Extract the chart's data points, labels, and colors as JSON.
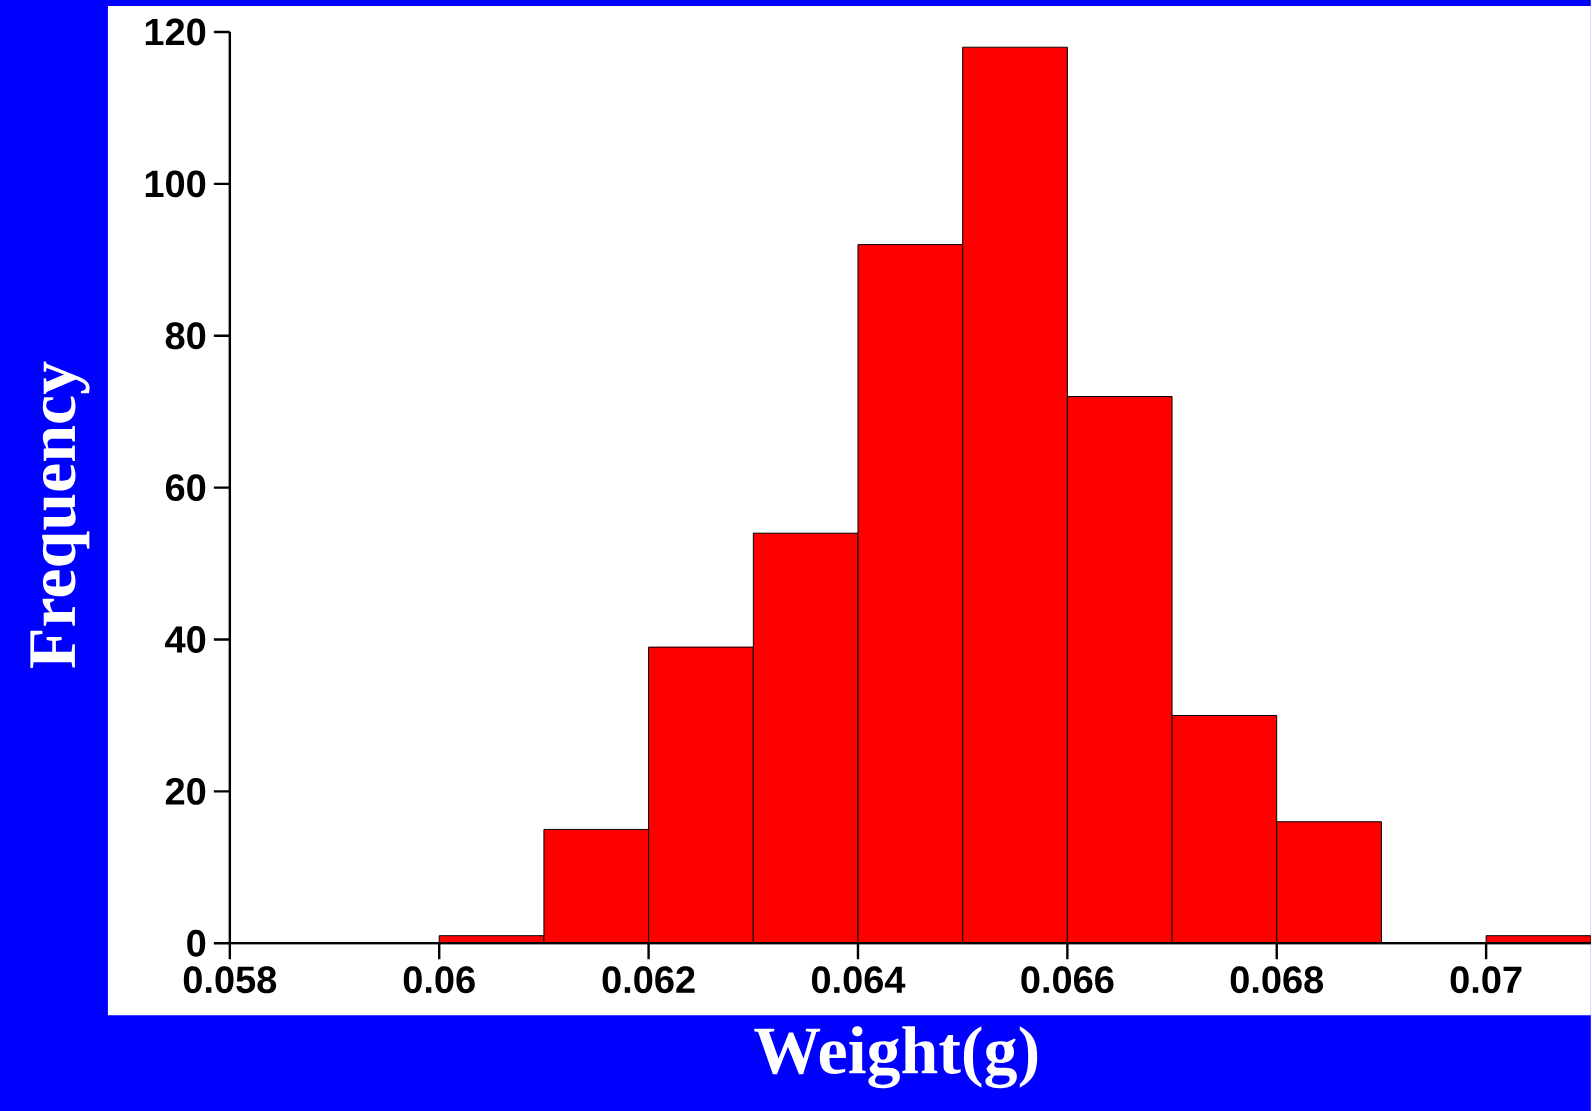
{
  "chart_data": {
    "type": "histogram",
    "xlabel": "Weight(g)",
    "ylabel": "Frequency",
    "bins": [
      0.06,
      0.061,
      0.062,
      0.063,
      0.064,
      0.065,
      0.066,
      0.067,
      0.068,
      0.069,
      0.07,
      0.071
    ],
    "values": [
      1,
      15,
      39,
      54,
      92,
      118,
      72,
      30,
      16,
      0,
      1
    ],
    "color": "#ff0000",
    "xlim": [
      0.058,
      0.071
    ],
    "xticks": [
      0.058,
      0.06,
      0.062,
      0.064,
      0.066,
      0.068,
      0.07
    ],
    "ylim": [
      0,
      120
    ],
    "yticks": [
      0,
      20,
      40,
      60,
      80,
      100,
      120
    ]
  }
}
